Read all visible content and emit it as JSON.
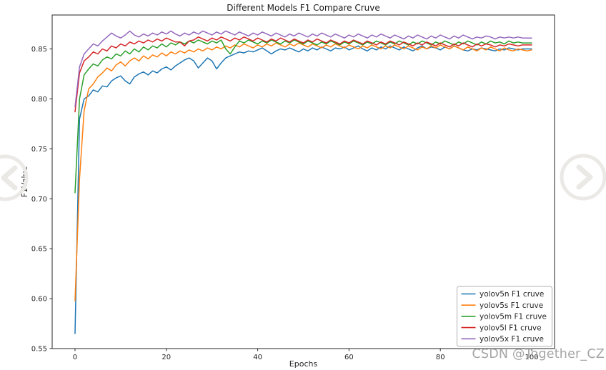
{
  "chart_data": {
    "type": "line",
    "title": "Different Models F1 Compare Cruve",
    "xlabel": "Epochs",
    "ylabel": "F1Value",
    "xlim": [
      -5,
      105
    ],
    "ylim": [
      0.55,
      0.884
    ],
    "xticks": [
      0,
      20,
      40,
      60,
      80,
      100
    ],
    "yticks": [
      0.55,
      0.6,
      0.65,
      0.7,
      0.75,
      0.8,
      0.85
    ],
    "grid": false,
    "legend_position": "lower right",
    "x_start": 0,
    "x_step": 1,
    "series": [
      {
        "name": "yolov5n F1 cruve",
        "color": "#1f77b4",
        "values": [
          0.565,
          0.78,
          0.8,
          0.803,
          0.809,
          0.807,
          0.813,
          0.812,
          0.818,
          0.821,
          0.823,
          0.818,
          0.815,
          0.822,
          0.825,
          0.827,
          0.824,
          0.828,
          0.826,
          0.83,
          0.832,
          0.829,
          0.833,
          0.836,
          0.839,
          0.841,
          0.838,
          0.831,
          0.836,
          0.841,
          0.838,
          0.83,
          0.836,
          0.841,
          0.843,
          0.845,
          0.847,
          0.846,
          0.848,
          0.847,
          0.849,
          0.851,
          0.848,
          0.845,
          0.848,
          0.85,
          0.849,
          0.851,
          0.849,
          0.847,
          0.85,
          0.848,
          0.851,
          0.849,
          0.852,
          0.85,
          0.848,
          0.851,
          0.85,
          0.852,
          0.849,
          0.851,
          0.853,
          0.85,
          0.848,
          0.851,
          0.849,
          0.852,
          0.85,
          0.853,
          0.851,
          0.849,
          0.852,
          0.85,
          0.848,
          0.851,
          0.853,
          0.85,
          0.852,
          0.851,
          0.849,
          0.852,
          0.85,
          0.853,
          0.851,
          0.849,
          0.848,
          0.85,
          0.849,
          0.851,
          0.85,
          0.849,
          0.848,
          0.85,
          0.849,
          0.851,
          0.85,
          0.849,
          0.85,
          0.85,
          0.85
        ]
      },
      {
        "name": "yolov5s F1 cruve",
        "color": "#ff7f0e",
        "values": [
          0.598,
          0.72,
          0.788,
          0.81,
          0.815,
          0.822,
          0.826,
          0.831,
          0.828,
          0.834,
          0.837,
          0.833,
          0.838,
          0.841,
          0.838,
          0.843,
          0.84,
          0.844,
          0.842,
          0.846,
          0.843,
          0.847,
          0.845,
          0.848,
          0.846,
          0.849,
          0.847,
          0.85,
          0.848,
          0.851,
          0.849,
          0.852,
          0.85,
          0.853,
          0.851,
          0.854,
          0.852,
          0.855,
          0.853,
          0.851,
          0.854,
          0.852,
          0.855,
          0.853,
          0.856,
          0.854,
          0.852,
          0.855,
          0.853,
          0.856,
          0.854,
          0.852,
          0.855,
          0.853,
          0.851,
          0.854,
          0.852,
          0.855,
          0.853,
          0.851,
          0.854,
          0.852,
          0.85,
          0.853,
          0.851,
          0.854,
          0.852,
          0.85,
          0.853,
          0.851,
          0.854,
          0.852,
          0.85,
          0.853,
          0.851,
          0.849,
          0.852,
          0.85,
          0.853,
          0.851,
          0.854,
          0.852,
          0.85,
          0.853,
          0.851,
          0.849,
          0.852,
          0.85,
          0.848,
          0.851,
          0.849,
          0.852,
          0.85,
          0.848,
          0.851,
          0.849,
          0.848,
          0.85,
          0.849,
          0.848,
          0.849
        ]
      },
      {
        "name": "yolov5m F1 cruve",
        "color": "#2ca02c",
        "values": [
          0.706,
          0.8,
          0.824,
          0.83,
          0.835,
          0.833,
          0.839,
          0.842,
          0.84,
          0.845,
          0.843,
          0.848,
          0.845,
          0.85,
          0.847,
          0.852,
          0.849,
          0.853,
          0.851,
          0.855,
          0.852,
          0.856,
          0.854,
          0.857,
          0.855,
          0.858,
          0.856,
          0.859,
          0.857,
          0.855,
          0.858,
          0.856,
          0.859,
          0.85,
          0.845,
          0.852,
          0.858,
          0.856,
          0.859,
          0.857,
          0.855,
          0.858,
          0.856,
          0.859,
          0.857,
          0.855,
          0.858,
          0.856,
          0.859,
          0.857,
          0.855,
          0.858,
          0.856,
          0.854,
          0.857,
          0.855,
          0.858,
          0.856,
          0.854,
          0.857,
          0.855,
          0.858,
          0.856,
          0.854,
          0.857,
          0.855,
          0.858,
          0.856,
          0.854,
          0.857,
          0.855,
          0.858,
          0.856,
          0.854,
          0.857,
          0.855,
          0.858,
          0.856,
          0.854,
          0.857,
          0.855,
          0.858,
          0.856,
          0.854,
          0.857,
          0.855,
          0.858,
          0.856,
          0.854,
          0.857,
          0.855,
          0.858,
          0.856,
          0.857,
          0.855,
          0.858,
          0.856,
          0.857,
          0.856,
          0.856,
          0.856
        ]
      },
      {
        "name": "yolov5l F1 cruve",
        "color": "#d62728",
        "values": [
          0.787,
          0.826,
          0.838,
          0.842,
          0.847,
          0.845,
          0.85,
          0.848,
          0.853,
          0.851,
          0.855,
          0.853,
          0.857,
          0.855,
          0.858,
          0.856,
          0.859,
          0.857,
          0.86,
          0.858,
          0.861,
          0.859,
          0.857,
          0.857,
          0.853,
          0.858,
          0.859,
          0.862,
          0.86,
          0.858,
          0.861,
          0.859,
          0.862,
          0.86,
          0.858,
          0.861,
          0.859,
          0.862,
          0.86,
          0.858,
          0.861,
          0.859,
          0.857,
          0.86,
          0.858,
          0.861,
          0.859,
          0.857,
          0.86,
          0.858,
          0.856,
          0.859,
          0.857,
          0.86,
          0.858,
          0.856,
          0.859,
          0.857,
          0.855,
          0.858,
          0.856,
          0.859,
          0.857,
          0.855,
          0.858,
          0.856,
          0.854,
          0.857,
          0.855,
          0.858,
          0.856,
          0.854,
          0.857,
          0.855,
          0.853,
          0.856,
          0.854,
          0.857,
          0.855,
          0.853,
          0.856,
          0.854,
          0.852,
          0.855,
          0.853,
          0.856,
          0.854,
          0.852,
          0.855,
          0.853,
          0.855,
          0.854,
          0.852,
          0.854,
          0.853,
          0.855,
          0.854,
          0.853,
          0.854,
          0.854,
          0.854
        ]
      },
      {
        "name": "yolov5x F1 cruve",
        "color": "#9467bd",
        "values": [
          0.792,
          0.832,
          0.845,
          0.85,
          0.855,
          0.853,
          0.858,
          0.862,
          0.866,
          0.863,
          0.861,
          0.864,
          0.868,
          0.864,
          0.862,
          0.865,
          0.863,
          0.866,
          0.864,
          0.867,
          0.865,
          0.868,
          0.865,
          0.863,
          0.866,
          0.864,
          0.867,
          0.865,
          0.868,
          0.866,
          0.864,
          0.867,
          0.865,
          0.868,
          0.866,
          0.864,
          0.867,
          0.865,
          0.863,
          0.866,
          0.864,
          0.867,
          0.865,
          0.863,
          0.866,
          0.864,
          0.862,
          0.865,
          0.863,
          0.866,
          0.864,
          0.862,
          0.865,
          0.863,
          0.866,
          0.864,
          0.862,
          0.865,
          0.863,
          0.861,
          0.864,
          0.862,
          0.865,
          0.863,
          0.861,
          0.864,
          0.862,
          0.865,
          0.863,
          0.861,
          0.864,
          0.862,
          0.86,
          0.863,
          0.861,
          0.864,
          0.862,
          0.86,
          0.863,
          0.861,
          0.864,
          0.862,
          0.86,
          0.863,
          0.861,
          0.864,
          0.862,
          0.86,
          0.862,
          0.861,
          0.863,
          0.862,
          0.86,
          0.862,
          0.861,
          0.862,
          0.861,
          0.862,
          0.861,
          0.861,
          0.861
        ]
      }
    ]
  },
  "watermark": {
    "text": "CSDN @Together_CZ",
    "color": "#a5a5a5"
  },
  "carousel": {
    "prev_icon": "chevron-left-icon",
    "next_icon": "chevron-right-icon",
    "icon_color": "#ebe9e6"
  }
}
